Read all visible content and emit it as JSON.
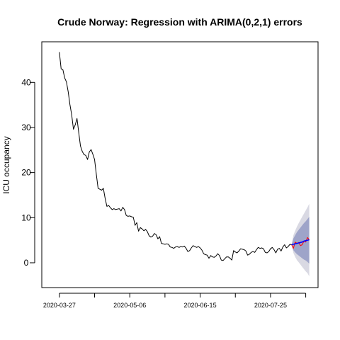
{
  "chart_data": {
    "type": "line",
    "title": "Crude Norway: Regression with ARIMA(0,2,1) errors",
    "xlabel": "",
    "ylabel": "ICU occupancy",
    "x_ticks": [
      "2020-03-27",
      "2020-05-06",
      "2020-06-15",
      "2020-07-25"
    ],
    "y_ticks": [
      0,
      10,
      20,
      30,
      40
    ],
    "xlim": [
      "2020-03-17",
      "2020-08-21"
    ],
    "ylim": [
      -5.5,
      49
    ],
    "grid": false,
    "colors": {
      "observed": "#000000",
      "forecast_mean": "#0000ff",
      "test_actual": "#ff0000",
      "pi80": "#9ea4c9",
      "pi95": "#d9d9e3"
    },
    "observed": [
      [
        "2020-03-27",
        46.7
      ],
      [
        "2020-03-28",
        43.0
      ],
      [
        "2020-03-29",
        42.8
      ],
      [
        "2020-03-30",
        41.0
      ],
      [
        "2020-03-31",
        40.1
      ],
      [
        "2020-04-01",
        37.9
      ],
      [
        "2020-04-02",
        35.1
      ],
      [
        "2020-04-03",
        32.8
      ],
      [
        "2020-04-04",
        29.6
      ],
      [
        "2020-04-05",
        30.6
      ],
      [
        "2020-04-06",
        32.0
      ],
      [
        "2020-04-07",
        28.8
      ],
      [
        "2020-04-08",
        25.9
      ],
      [
        "2020-04-09",
        24.7
      ],
      [
        "2020-04-10",
        24.0
      ],
      [
        "2020-04-11",
        23.8
      ],
      [
        "2020-04-12",
        22.9
      ],
      [
        "2020-04-13",
        24.6
      ],
      [
        "2020-04-14",
        25.1
      ],
      [
        "2020-04-15",
        24.1
      ],
      [
        "2020-04-16",
        22.9
      ],
      [
        "2020-04-17",
        19.6
      ],
      [
        "2020-04-18",
        16.5
      ],
      [
        "2020-04-19",
        16.3
      ],
      [
        "2020-04-20",
        16.1
      ],
      [
        "2020-04-21",
        16.5
      ],
      [
        "2020-04-22",
        14.3
      ],
      [
        "2020-04-23",
        12.5
      ],
      [
        "2020-04-24",
        12.7
      ],
      [
        "2020-04-25",
        12.2
      ],
      [
        "2020-04-26",
        11.8
      ],
      [
        "2020-04-27",
        12.0
      ],
      [
        "2020-04-28",
        11.8
      ],
      [
        "2020-04-29",
        11.9
      ],
      [
        "2020-04-30",
        12.0
      ],
      [
        "2020-05-01",
        11.5
      ],
      [
        "2020-05-02",
        12.3
      ],
      [
        "2020-05-03",
        11.8
      ],
      [
        "2020-05-04",
        10.5
      ],
      [
        "2020-05-05",
        10.3
      ],
      [
        "2020-05-06",
        10.4
      ],
      [
        "2020-05-07",
        10.2
      ],
      [
        "2020-05-08",
        10.1
      ],
      [
        "2020-05-09",
        8.3
      ],
      [
        "2020-05-10",
        8.9
      ],
      [
        "2020-05-11",
        7.0
      ],
      [
        "2020-05-12",
        7.8
      ],
      [
        "2020-05-13",
        7.5
      ],
      [
        "2020-05-14",
        7.1
      ],
      [
        "2020-05-15",
        7.4
      ],
      [
        "2020-05-16",
        6.9
      ],
      [
        "2020-05-17",
        6.0
      ],
      [
        "2020-05-18",
        5.7
      ],
      [
        "2020-05-19",
        5.9
      ],
      [
        "2020-05-20",
        6.5
      ],
      [
        "2020-05-21",
        6.2
      ],
      [
        "2020-05-22",
        5.3
      ],
      [
        "2020-05-23",
        5.8
      ],
      [
        "2020-05-24",
        4.3
      ],
      [
        "2020-05-25",
        4.2
      ],
      [
        "2020-05-26",
        4.1
      ],
      [
        "2020-05-27",
        4.2
      ],
      [
        "2020-05-28",
        4.1
      ],
      [
        "2020-05-29",
        3.5
      ],
      [
        "2020-05-30",
        3.4
      ],
      [
        "2020-05-31",
        3.2
      ],
      [
        "2020-06-01",
        3.5
      ],
      [
        "2020-06-02",
        3.6
      ],
      [
        "2020-06-03",
        3.4
      ],
      [
        "2020-06-04",
        3.6
      ],
      [
        "2020-06-05",
        3.5
      ],
      [
        "2020-06-06",
        3.7
      ],
      [
        "2020-06-07",
        3.2
      ],
      [
        "2020-06-08",
        2.5
      ],
      [
        "2020-06-09",
        2.7
      ],
      [
        "2020-06-10",
        3.3
      ],
      [
        "2020-06-11",
        3.8
      ],
      [
        "2020-06-12",
        3.6
      ],
      [
        "2020-06-13",
        3.4
      ],
      [
        "2020-06-14",
        3.6
      ],
      [
        "2020-06-15",
        3.3
      ],
      [
        "2020-06-16",
        2.8
      ],
      [
        "2020-06-17",
        2.0
      ],
      [
        "2020-06-18",
        1.8
      ],
      [
        "2020-06-19",
        1.7
      ],
      [
        "2020-06-20",
        1.0
      ],
      [
        "2020-06-21",
        1.6
      ],
      [
        "2020-06-22",
        1.3
      ],
      [
        "2020-06-23",
        1.2
      ],
      [
        "2020-06-24",
        1.5
      ],
      [
        "2020-06-25",
        2.0
      ],
      [
        "2020-06-26",
        1.6
      ],
      [
        "2020-06-27",
        0.6
      ],
      [
        "2020-06-28",
        0.5
      ],
      [
        "2020-06-29",
        0.9
      ],
      [
        "2020-06-30",
        1.3
      ],
      [
        "2020-07-01",
        1.3
      ],
      [
        "2020-07-02",
        1.0
      ],
      [
        "2020-07-03",
        0.6
      ],
      [
        "2020-07-04",
        2.7
      ],
      [
        "2020-07-05",
        2.4
      ],
      [
        "2020-07-06",
        2.2
      ],
      [
        "2020-07-07",
        2.6
      ],
      [
        "2020-07-08",
        3.1
      ],
      [
        "2020-07-09",
        3.0
      ],
      [
        "2020-07-10",
        2.9
      ],
      [
        "2020-07-11",
        2.6
      ],
      [
        "2020-07-12",
        1.7
      ],
      [
        "2020-07-13",
        1.9
      ],
      [
        "2020-07-14",
        2.3
      ],
      [
        "2020-07-15",
        2.5
      ],
      [
        "2020-07-16",
        2.3
      ],
      [
        "2020-07-17",
        2.9
      ],
      [
        "2020-07-18",
        3.4
      ],
      [
        "2020-07-19",
        3.2
      ],
      [
        "2020-07-20",
        3.3
      ],
      [
        "2020-07-21",
        3.1
      ],
      [
        "2020-07-22",
        2.3
      ],
      [
        "2020-07-23",
        2.2
      ],
      [
        "2020-07-24",
        2.5
      ],
      [
        "2020-07-25",
        3.1
      ],
      [
        "2020-07-26",
        3.4
      ],
      [
        "2020-07-27",
        2.9
      ],
      [
        "2020-07-28",
        2.2
      ],
      [
        "2020-07-29",
        3.0
      ],
      [
        "2020-07-30",
        3.2
      ],
      [
        "2020-07-31",
        2.6
      ],
      [
        "2020-08-01",
        3.5
      ],
      [
        "2020-08-02",
        4.0
      ],
      [
        "2020-08-03",
        3.3
      ],
      [
        "2020-08-04",
        3.6
      ],
      [
        "2020-08-05",
        4.1
      ],
      [
        "2020-08-06",
        4.0
      ]
    ],
    "test_actual": [
      [
        "2020-08-06",
        4.0
      ],
      [
        "2020-08-07",
        3.2
      ],
      [
        "2020-08-08",
        4.6
      ],
      [
        "2020-08-09",
        4.3
      ],
      [
        "2020-08-10",
        4.5
      ],
      [
        "2020-08-11",
        3.8
      ],
      [
        "2020-08-12",
        4.0
      ],
      [
        "2020-08-13",
        4.8
      ],
      [
        "2020-08-14",
        4.6
      ],
      [
        "2020-08-15",
        5.6
      ],
      [
        "2020-08-16",
        5.1
      ]
    ],
    "forecast": [
      [
        "2020-08-06",
        4.0,
        4.0,
        4.0,
        4.0,
        4.0
      ],
      [
        "2020-08-07",
        4.1,
        2.8,
        5.4,
        2.2,
        6.1
      ],
      [
        "2020-08-08",
        4.2,
        2.3,
        6.1,
        1.3,
        7.1
      ],
      [
        "2020-08-09",
        4.3,
        1.9,
        6.8,
        0.6,
        8.0
      ],
      [
        "2020-08-10",
        4.4,
        1.6,
        7.3,
        0.1,
        8.8
      ],
      [
        "2020-08-11",
        4.5,
        1.3,
        7.8,
        -0.4,
        9.5
      ],
      [
        "2020-08-12",
        4.6,
        1.0,
        8.3,
        -0.9,
        10.2
      ],
      [
        "2020-08-13",
        4.8,
        0.7,
        8.8,
        -1.4,
        10.9
      ],
      [
        "2020-08-14",
        4.9,
        0.5,
        9.2,
        -1.9,
        11.6
      ],
      [
        "2020-08-15",
        5.0,
        0.2,
        9.7,
        -2.3,
        12.3
      ],
      [
        "2020-08-16",
        5.1,
        -0.2,
        10.2,
        -3.0,
        13.1
      ]
    ]
  }
}
